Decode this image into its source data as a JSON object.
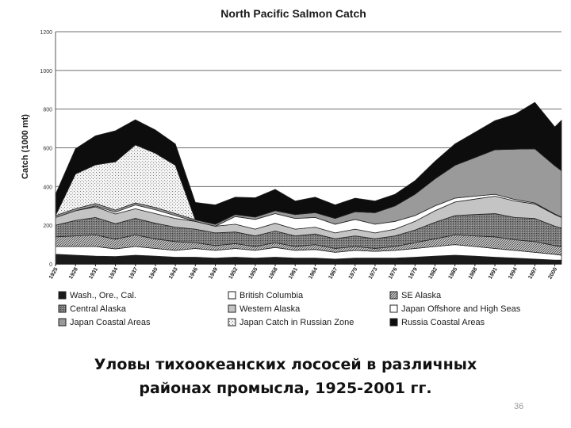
{
  "caption": {
    "line1": "Уловы тихоокеанских лососей в различных",
    "line2": "районах промысла, 1925-2001 гг."
  },
  "page_number": "36",
  "chart_data": {
    "type": "area",
    "title": "North Pacific Salmon Catch",
    "ylabel": "Catch (1000 mt)",
    "xlabel": "",
    "ylim": [
      0,
      1200
    ],
    "xlim": [
      1925,
      2001
    ],
    "yticks": [
      "0",
      "200",
      "400",
      "600",
      "800",
      "1000",
      "1200"
    ],
    "xticks": [
      "1925",
      "1928",
      "1931",
      "1934",
      "1937",
      "1940",
      "1943",
      "1946",
      "1949",
      "1952",
      "1955",
      "1958",
      "1961",
      "1964",
      "1967",
      "1970",
      "1973",
      "1976",
      "1979",
      "1982",
      "1985",
      "1988",
      "1991",
      "1994",
      "1997",
      "2000"
    ],
    "grid": true,
    "legend_position": "bottom",
    "x": [
      1925,
      1928,
      1931,
      1934,
      1937,
      1940,
      1943,
      1946,
      1949,
      1952,
      1955,
      1958,
      1961,
      1964,
      1967,
      1970,
      1973,
      1976,
      1979,
      1982,
      1985,
      1988,
      1991,
      1994,
      1997,
      2000,
      2001
    ],
    "series": [
      {
        "name": "Wash., Ore., Cal.",
        "values": [
          50,
          45,
          40,
          38,
          45,
          40,
          35,
          35,
          30,
          35,
          30,
          35,
          30,
          30,
          25,
          30,
          30,
          30,
          35,
          40,
          45,
          40,
          35,
          30,
          25,
          20,
          20
        ]
      },
      {
        "name": "British Columbia",
        "values": [
          40,
          45,
          50,
          40,
          45,
          40,
          35,
          45,
          40,
          45,
          40,
          50,
          40,
          45,
          35,
          40,
          35,
          40,
          45,
          50,
          55,
          50,
          45,
          40,
          35,
          30,
          25
        ]
      },
      {
        "name": "SE Alaska",
        "values": [
          50,
          55,
          60,
          50,
          60,
          50,
          45,
          30,
          25,
          25,
          20,
          25,
          20,
          25,
          20,
          20,
          15,
          20,
          30,
          40,
          50,
          55,
          60,
          55,
          55,
          45,
          45
        ]
      },
      {
        "name": "Central Alaska",
        "values": [
          60,
          80,
          90,
          80,
          85,
          80,
          75,
          70,
          65,
          60,
          55,
          60,
          55,
          55,
          50,
          55,
          50,
          55,
          65,
          85,
          100,
          110,
          120,
          115,
          120,
          100,
          95
        ]
      },
      {
        "name": "Western Alaska",
        "values": [
          40,
          50,
          55,
          50,
          50,
          50,
          45,
          40,
          35,
          40,
          35,
          40,
          35,
          35,
          30,
          35,
          30,
          35,
          45,
          60,
          70,
          80,
          90,
          85,
          75,
          60,
          55
        ]
      },
      {
        "name": "Japan Offshore and High Seas",
        "values": [
          0,
          0,
          5,
          10,
          20,
          20,
          15,
          0,
          0,
          40,
          50,
          50,
          55,
          50,
          45,
          50,
          45,
          40,
          30,
          25,
          20,
          15,
          10,
          8,
          5,
          3,
          2
        ]
      },
      {
        "name": "Japan Coastal Areas",
        "values": [
          10,
          10,
          12,
          10,
          10,
          12,
          10,
          8,
          10,
          10,
          12,
          15,
          20,
          25,
          30,
          40,
          60,
          80,
          110,
          140,
          170,
          200,
          230,
          260,
          280,
          250,
          240
        ]
      },
      {
        "name": "Japan Catch in Russian Zone",
        "values": [
          0,
          180,
          200,
          250,
          300,
          280,
          250,
          0,
          0,
          0,
          0,
          0,
          0,
          0,
          0,
          0,
          0,
          0,
          0,
          0,
          0,
          0,
          0,
          0,
          0,
          0,
          0
        ]
      },
      {
        "name": "Russia Coastal Areas",
        "values": [
          110,
          130,
          150,
          160,
          130,
          120,
          110,
          90,
          100,
          90,
          100,
          110,
          70,
          80,
          70,
          70,
          60,
          60,
          70,
          90,
          110,
          130,
          150,
          180,
          240,
          200,
          260
        ]
      }
    ]
  },
  "colors": {
    "background": "#ffffff",
    "ink": "#1a1a1a",
    "grid": "#6e6e6e",
    "fills": [
      "#1a1a1a",
      "#ffffff",
      "#8f8f8f",
      "#6f6f6f",
      "#c4c4c4",
      "#ffffff",
      "#9a9a9a",
      "#eeeeee",
      "#0d0d0d"
    ]
  }
}
